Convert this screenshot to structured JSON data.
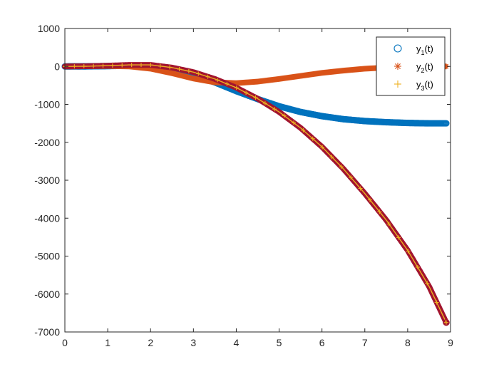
{
  "chart_data": {
    "type": "scatter",
    "title": "",
    "xlabel": "",
    "ylabel": "",
    "xlim": [
      0,
      9
    ],
    "ylim": [
      -7000,
      1000
    ],
    "xticks": [
      0,
      1,
      2,
      3,
      4,
      5,
      6,
      7,
      8,
      9
    ],
    "yticks": [
      1000,
      0,
      -1000,
      -2000,
      -3000,
      -4000,
      -5000,
      -6000,
      -7000
    ],
    "grid": false,
    "legend_position": "top-right",
    "series": [
      {
        "name": "y_1(t)",
        "legend": {
          "base": "y",
          "sub": "1",
          "suffix": "(t)"
        },
        "marker": "circle",
        "color": "#0072BD",
        "x": [
          0,
          0.5,
          1,
          1.5,
          2,
          2.5,
          3,
          3.5,
          4,
          4.5,
          5,
          5.5,
          6,
          6.5,
          7,
          7.5,
          8,
          8.5,
          8.9
        ],
        "y": [
          0,
          2,
          10,
          20,
          0,
          -80,
          -220,
          -420,
          -650,
          -860,
          -1050,
          -1200,
          -1310,
          -1390,
          -1440,
          -1470,
          -1490,
          -1500,
          -1500
        ]
      },
      {
        "name": "y_2(t)",
        "legend": {
          "base": "y",
          "sub": "2",
          "suffix": "(t)"
        },
        "marker": "asterisk",
        "color": "#D95319",
        "x": [
          0,
          0.5,
          1,
          1.5,
          2,
          2.5,
          3,
          3.5,
          4,
          4.5,
          5,
          5.5,
          6,
          6.5,
          7,
          7.5,
          8,
          8.5,
          8.9
        ],
        "y": [
          0,
          5,
          10,
          0,
          -60,
          -180,
          -320,
          -420,
          -440,
          -400,
          -330,
          -250,
          -170,
          -110,
          -60,
          -30,
          -10,
          0,
          0
        ]
      },
      {
        "name": "y_3(t)",
        "legend": {
          "base": "y",
          "sub": "3",
          "suffix": "(t)"
        },
        "marker": "plus",
        "color": "#EDB120",
        "x": [
          0,
          0.5,
          1,
          1.5,
          2,
          2.5,
          3,
          3.5,
          4,
          4.5,
          5,
          5.5,
          6,
          6.5,
          7,
          7.5,
          8,
          8.5,
          8.9
        ],
        "y": [
          0,
          5,
          20,
          40,
          40,
          -30,
          -150,
          -330,
          -560,
          -850,
          -1200,
          -1620,
          -2120,
          -2700,
          -3350,
          -4050,
          -4850,
          -5800,
          -6750
        ]
      }
    ],
    "overlay_line": {
      "color": "#A2142F",
      "x": [
        0,
        0.5,
        1,
        1.5,
        2,
        2.5,
        3,
        3.5,
        4,
        4.5,
        5,
        5.5,
        6,
        6.5,
        7,
        7.5,
        8,
        8.5,
        8.9
      ],
      "y": [
        0,
        5,
        20,
        40,
        40,
        -30,
        -150,
        -330,
        -560,
        -850,
        -1200,
        -1620,
        -2120,
        -2700,
        -3350,
        -4050,
        -4850,
        -5800,
        -6750
      ]
    }
  }
}
